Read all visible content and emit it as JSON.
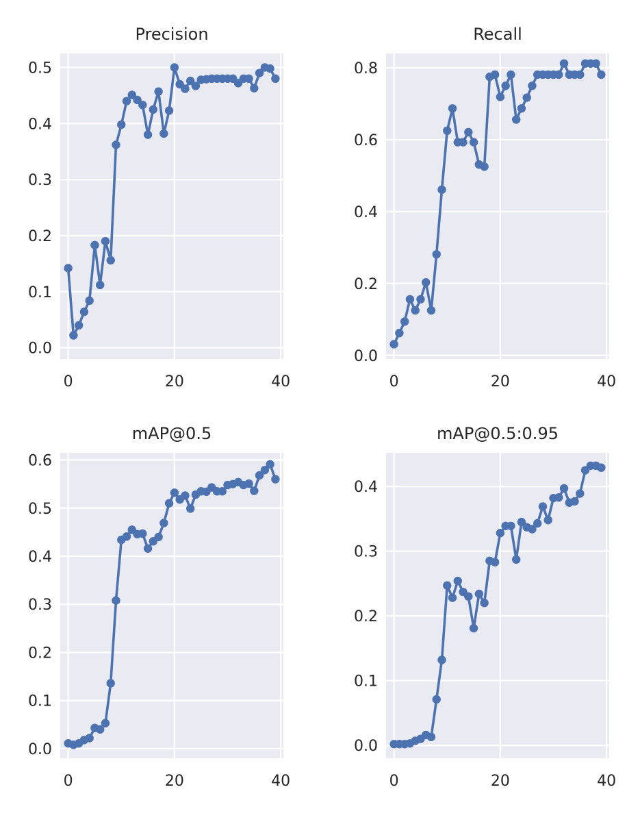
{
  "style": {
    "series_color": "#4c72b0",
    "plot_background": "#eaeaf2",
    "grid_color": "#ffffff"
  },
  "chart_data": [
    {
      "type": "line",
      "title": "Precision",
      "xlabel": "",
      "ylabel": "",
      "xlim": [
        -1.5,
        40.5
      ],
      "ylim": [
        -0.02,
        0.525
      ],
      "xticks": [
        0,
        20,
        40
      ],
      "yticks": [
        0.0,
        0.1,
        0.2,
        0.3,
        0.4,
        0.5
      ],
      "ytick_labels": [
        "0.0",
        "0.1",
        "0.2",
        "0.3",
        "0.4",
        "0.5"
      ],
      "grid": true,
      "legend": "none",
      "series": [
        {
          "x": [
            0,
            1,
            2,
            3,
            4,
            5,
            6,
            7,
            8,
            9,
            10,
            11,
            12,
            13,
            14,
            15,
            16,
            17,
            18,
            19,
            20,
            21,
            22,
            23,
            24,
            25,
            26,
            27,
            28,
            29,
            30,
            31,
            32,
            33,
            34,
            35,
            36,
            37,
            38,
            39
          ],
          "values": [
            0.142,
            0.022,
            0.04,
            0.064,
            0.084,
            0.183,
            0.112,
            0.19,
            0.156,
            0.362,
            0.398,
            0.44,
            0.451,
            0.442,
            0.433,
            0.38,
            0.425,
            0.457,
            0.382,
            0.423,
            0.5,
            0.47,
            0.462,
            0.476,
            0.467,
            0.478,
            0.479,
            0.48,
            0.48,
            0.48,
            0.48,
            0.48,
            0.472,
            0.48,
            0.48,
            0.463,
            0.49,
            0.5,
            0.498,
            0.48
          ]
        }
      ]
    },
    {
      "type": "line",
      "title": "Recall",
      "xlabel": "",
      "ylabel": "",
      "xlim": [
        -1.5,
        40.5
      ],
      "ylim": [
        -0.01,
        0.84
      ],
      "xticks": [
        0,
        20,
        40
      ],
      "yticks": [
        0.0,
        0.2,
        0.4,
        0.6,
        0.8
      ],
      "ytick_labels": [
        "0.0",
        "0.2",
        "0.4",
        "0.6",
        "0.8"
      ],
      "grid": true,
      "legend": "none",
      "series": [
        {
          "x": [
            0,
            1,
            2,
            3,
            4,
            5,
            6,
            7,
            8,
            9,
            10,
            11,
            12,
            13,
            14,
            15,
            16,
            17,
            18,
            19,
            20,
            21,
            22,
            23,
            24,
            25,
            26,
            27,
            28,
            29,
            30,
            31,
            32,
            33,
            34,
            35,
            36,
            37,
            38,
            39
          ],
          "values": [
            0.031,
            0.062,
            0.094,
            0.156,
            0.125,
            0.156,
            0.203,
            0.125,
            0.281,
            0.461,
            0.625,
            0.687,
            0.593,
            0.593,
            0.621,
            0.593,
            0.531,
            0.525,
            0.775,
            0.781,
            0.719,
            0.75,
            0.781,
            0.656,
            0.687,
            0.717,
            0.75,
            0.781,
            0.781,
            0.781,
            0.781,
            0.781,
            0.812,
            0.781,
            0.781,
            0.781,
            0.812,
            0.812,
            0.812,
            0.781
          ]
        }
      ]
    },
    {
      "type": "line",
      "title": "mAP@0.5",
      "xlabel": "",
      "ylabel": "",
      "xlim": [
        -1.5,
        40.5
      ],
      "ylim": [
        -0.02,
        0.615
      ],
      "xticks": [
        0,
        20,
        40
      ],
      "yticks": [
        0.0,
        0.1,
        0.2,
        0.3,
        0.4,
        0.5,
        0.6
      ],
      "ytick_labels": [
        "0.0",
        "0.1",
        "0.2",
        "0.3",
        "0.4",
        "0.5",
        "0.6"
      ],
      "grid": true,
      "legend": "none",
      "series": [
        {
          "x": [
            0,
            1,
            2,
            3,
            4,
            5,
            6,
            7,
            8,
            9,
            10,
            11,
            12,
            13,
            14,
            15,
            16,
            17,
            18,
            19,
            20,
            21,
            22,
            23,
            24,
            25,
            26,
            27,
            28,
            29,
            30,
            31,
            32,
            33,
            34,
            35,
            36,
            37,
            38,
            39
          ],
          "values": [
            0.011,
            0.008,
            0.011,
            0.018,
            0.022,
            0.043,
            0.04,
            0.053,
            0.136,
            0.308,
            0.434,
            0.441,
            0.455,
            0.446,
            0.447,
            0.416,
            0.431,
            0.44,
            0.469,
            0.51,
            0.532,
            0.518,
            0.526,
            0.499,
            0.528,
            0.535,
            0.534,
            0.543,
            0.535,
            0.535,
            0.548,
            0.55,
            0.554,
            0.548,
            0.551,
            0.536,
            0.568,
            0.579,
            0.591,
            0.56
          ]
        }
      ]
    },
    {
      "type": "line",
      "title": "mAP@0.5:0.95",
      "xlabel": "",
      "ylabel": "",
      "xlim": [
        -1.5,
        40.5
      ],
      "ylim": [
        -0.02,
        0.452
      ],
      "xticks": [
        0,
        20,
        40
      ],
      "yticks": [
        0.0,
        0.1,
        0.2,
        0.3,
        0.4
      ],
      "ytick_labels": [
        "0.0",
        "0.1",
        "0.2",
        "0.3",
        "0.4"
      ],
      "grid": true,
      "legend": "none",
      "series": [
        {
          "x": [
            0,
            1,
            2,
            3,
            4,
            5,
            6,
            7,
            8,
            9,
            10,
            11,
            12,
            13,
            14,
            15,
            16,
            17,
            18,
            19,
            20,
            21,
            22,
            23,
            24,
            25,
            26,
            27,
            28,
            29,
            30,
            31,
            32,
            33,
            34,
            35,
            36,
            37,
            38,
            39
          ],
          "values": [
            0.002,
            0.002,
            0.002,
            0.003,
            0.007,
            0.01,
            0.016,
            0.013,
            0.071,
            0.132,
            0.247,
            0.228,
            0.254,
            0.237,
            0.23,
            0.181,
            0.234,
            0.22,
            0.285,
            0.283,
            0.328,
            0.339,
            0.339,
            0.287,
            0.345,
            0.337,
            0.334,
            0.343,
            0.369,
            0.348,
            0.382,
            0.383,
            0.397,
            0.375,
            0.377,
            0.389,
            0.425,
            0.432,
            0.432,
            0.429
          ]
        }
      ]
    }
  ]
}
